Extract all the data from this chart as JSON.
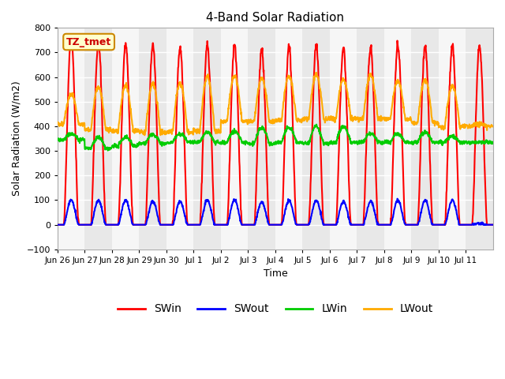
{
  "title": "4-Band Solar Radiation",
  "ylabel": "Solar Radiation (W/m2)",
  "xlabel": "Time",
  "ylim": [
    -100,
    800
  ],
  "yticks": [
    -100,
    0,
    100,
    200,
    300,
    400,
    500,
    600,
    700,
    800
  ],
  "background_color": "#ffffff",
  "plot_bg_color": "#e8e8e8",
  "grid_color": "#ffffff",
  "annotation_label": "TZ_tmet",
  "annotation_bg": "#ffffcc",
  "annotation_border": "#cc8800",
  "annotation_text_color": "#cc0000",
  "line_colors": {
    "SWin": "#ff0000",
    "SWout": "#0000ff",
    "LWin": "#00cc00",
    "LWout": "#ffaa00"
  },
  "line_widths": {
    "SWin": 1.5,
    "SWout": 1.5,
    "LWin": 1.5,
    "LWout": 1.5
  },
  "n_days": 16,
  "dt_hours": 0.25,
  "SWin_peak": [
    760,
    740,
    735,
    730,
    720,
    730,
    730,
    710,
    720,
    725,
    720,
    720,
    730,
    730,
    730,
    730
  ],
  "SWout_peak": [
    100,
    100,
    100,
    95,
    95,
    100,
    100,
    92,
    98,
    100,
    95,
    95,
    100,
    100,
    100,
    5
  ],
  "LWin_base": [
    345,
    310,
    320,
    330,
    335,
    335,
    335,
    330,
    335,
    330,
    335,
    335,
    335,
    335,
    335,
    335
  ],
  "LWin_peak": [
    370,
    355,
    355,
    365,
    370,
    375,
    380,
    395,
    395,
    400,
    400,
    370,
    370,
    375,
    360,
    335
  ],
  "LWout_base": [
    410,
    385,
    380,
    375,
    375,
    380,
    420,
    420,
    425,
    430,
    430,
    430,
    430,
    415,
    400,
    400
  ],
  "LWout_peak": [
    530,
    560,
    565,
    575,
    575,
    600,
    605,
    595,
    605,
    610,
    590,
    610,
    585,
    590,
    565,
    410
  ],
  "day_labels": [
    "Jun 26",
    "Jun 27",
    "Jun 28",
    "Jun 29",
    "Jun 30",
    "Jul 1",
    "Jul 2",
    "Jul 3",
    "Jul 4",
    "Jul 5",
    "Jul 6",
    "Jul 7",
    "Jul 8",
    "Jul 9",
    "Jul 10",
    "Jul 11"
  ],
  "shade_band_color": "#d8d8d8"
}
